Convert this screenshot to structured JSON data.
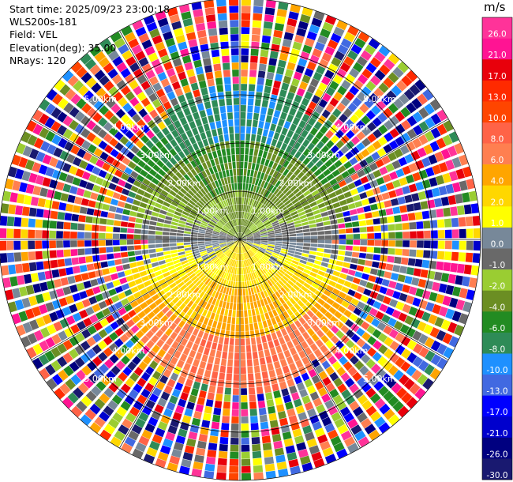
{
  "header": {
    "start_time": "Start time: 2025/09/23 23:00:18",
    "instrument": "WLS200s-181",
    "field": "Field: VEL",
    "elevation": "Elevation(deg): 35.00",
    "nrays": "NRays: 120"
  },
  "colorbar": {
    "unit": "m/s",
    "bins": [
      {
        "label": "26.0",
        "color": "#ff3399"
      },
      {
        "label": "21.0",
        "color": "#ff1493"
      },
      {
        "label": "17.0",
        "color": "#e8000b"
      },
      {
        "label": "13.0",
        "color": "#ff2a00"
      },
      {
        "label": "10.0",
        "color": "#ff4500"
      },
      {
        "label": "8.0",
        "color": "#ff6347"
      },
      {
        "label": "6.0",
        "color": "#ff7f50"
      },
      {
        "label": "4.0",
        "color": "#ffa500"
      },
      {
        "label": "2.0",
        "color": "#ffd700"
      },
      {
        "label": "1.0",
        "color": "#ffff00"
      },
      {
        "label": "0.0",
        "color": "#778899"
      },
      {
        "label": "-1.0",
        "color": "#696969"
      },
      {
        "label": "-2.0",
        "color": "#9acd32"
      },
      {
        "label": "-4.0",
        "color": "#6b8e23"
      },
      {
        "label": "-6.0",
        "color": "#228b22"
      },
      {
        "label": "-8.0",
        "color": "#2e8b57"
      },
      {
        "label": "-10.0",
        "color": "#1e90ff"
      },
      {
        "label": "-13.0",
        "color": "#4169e1"
      },
      {
        "label": "-17.0",
        "color": "#0000ff"
      },
      {
        "label": "-21.0",
        "color": "#0000cd"
      },
      {
        "label": "-26.0",
        "color": "#000080"
      },
      {
        "label": "-30.0",
        "color": "#191970"
      }
    ]
  },
  "chart_data": {
    "type": "heatmap",
    "projection": "polar PPI",
    "field": "VEL",
    "elevation_deg": 35.0,
    "nrays": 120,
    "range_rings_km": [
      1,
      2,
      3,
      4,
      5
    ],
    "range_labels": [
      "1.00km",
      "2.00km",
      "3.00km",
      "4.00km",
      "5.00km"
    ],
    "max_range_km": 5.0,
    "colorbar_bounds": [
      -30,
      -26,
      -21,
      -17,
      -13,
      -10,
      -8,
      -6,
      -4,
      -2,
      -1,
      0,
      1,
      2,
      4,
      6,
      8,
      10,
      13,
      17,
      21,
      26,
      30
    ],
    "velocity_pattern": {
      "north_sector": "negative (blue -10 to -13 m/s near 2–3 km)",
      "west_east_flanks": "green to yellow-green (-2 to -8 m/s)",
      "south_sector": "positive (yellow/orange near center, salmon 6–8 m/s at 2–3 km)",
      "beyond_about_3km": "noise (random values across full scale)"
    }
  }
}
